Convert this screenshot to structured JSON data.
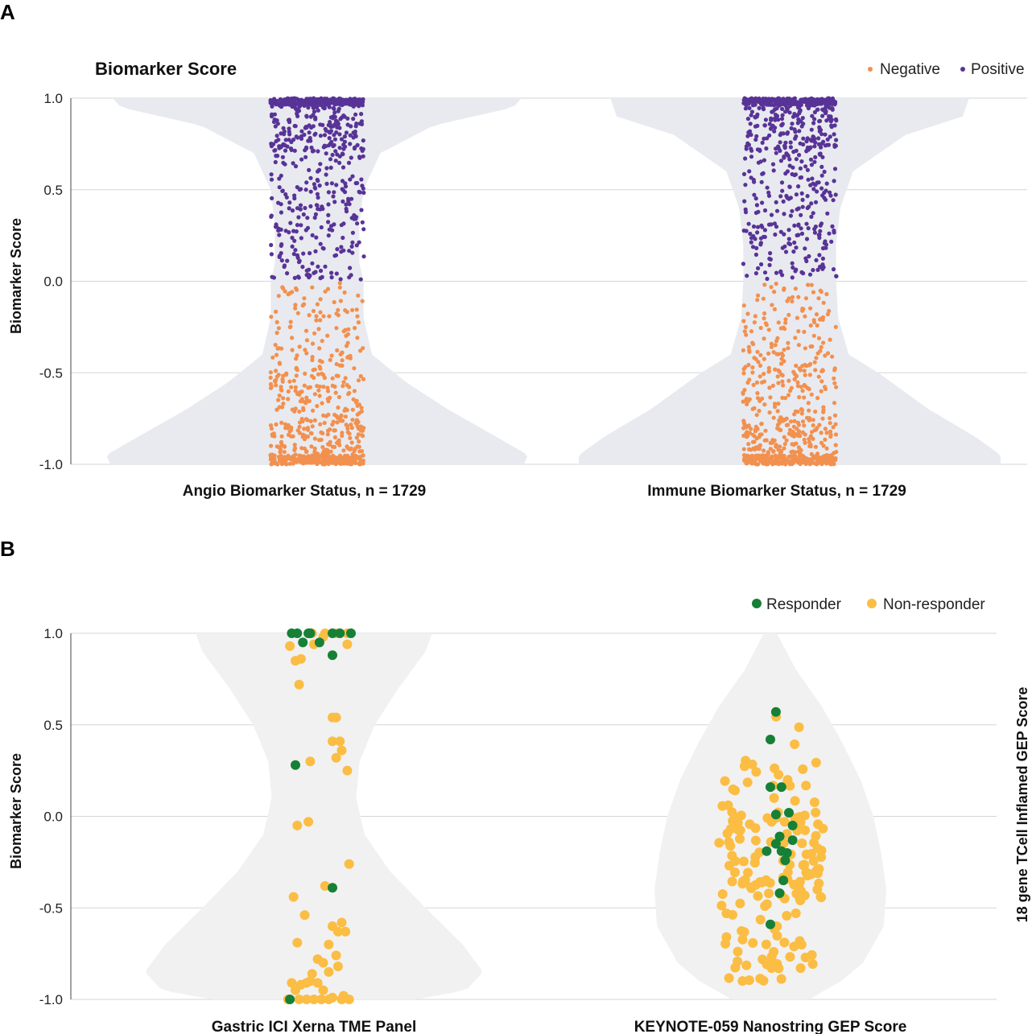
{
  "colors": {
    "negative": "#f2904f",
    "positive": "#583397",
    "responder": "#168036",
    "non_responder": "#fbbd43",
    "violin_a": "#e8eaef",
    "violin_b": "#f1f1f1",
    "grid": "#d6d6d6"
  },
  "panel_a": {
    "label": "A",
    "chart_data": {
      "type": "scatter",
      "title": "Biomarker Score",
      "ylabel": "Biomarker Score",
      "ylim": [
        -1.0,
        1.0
      ],
      "yticks": [
        "1.0",
        "0.5",
        "0.0",
        "-0.5",
        "-1.0"
      ],
      "legend": [
        {
          "name": "Negative",
          "color_key": "negative"
        },
        {
          "name": "Positive",
          "color_key": "positive"
        }
      ],
      "legend_position": "top-right",
      "categories": [
        "Angio Biomarker Status, n = 1729",
        "Immune Biomarker Status, n = 1729"
      ],
      "series": [
        {
          "category": "Angio Biomarker Status, n = 1729",
          "n": 1729,
          "positive_share": 0.55,
          "density_profile": [
            [
              1.0,
              0.97
            ],
            [
              0.95,
              0.93
            ],
            [
              0.85,
              0.55
            ],
            [
              0.7,
              0.3
            ],
            [
              0.5,
              0.22
            ],
            [
              0.3,
              0.2
            ],
            [
              0.1,
              0.2
            ],
            [
              0.0,
              0.22
            ],
            [
              -0.2,
              0.22
            ],
            [
              -0.4,
              0.26
            ],
            [
              -0.55,
              0.42
            ],
            [
              -0.7,
              0.62
            ],
            [
              -0.85,
              0.85
            ],
            [
              -0.95,
              1.0
            ],
            [
              -1.0,
              0.98
            ]
          ]
        },
        {
          "category": "Immune Biomarker Status, n = 1729",
          "n": 1729,
          "positive_share": 0.52,
          "density_profile": [
            [
              1.0,
              0.85
            ],
            [
              0.9,
              0.82
            ],
            [
              0.8,
              0.55
            ],
            [
              0.6,
              0.3
            ],
            [
              0.4,
              0.24
            ],
            [
              0.2,
              0.22
            ],
            [
              0.0,
              0.22
            ],
            [
              -0.2,
              0.23
            ],
            [
              -0.4,
              0.28
            ],
            [
              -0.5,
              0.42
            ],
            [
              -0.7,
              0.66
            ],
            [
              -0.85,
              0.88
            ],
            [
              -0.95,
              1.0
            ],
            [
              -1.0,
              1.0
            ]
          ]
        }
      ]
    }
  },
  "panel_b": {
    "label": "B",
    "chart_data": {
      "type": "scatter",
      "ylabel": "Biomarker Score",
      "y2label": "18 gene TCell Inflamed GEP Score",
      "ylim": [
        -1.0,
        1.0
      ],
      "yticks": [
        "1.0",
        "0.5",
        "0.0",
        "-0.5",
        "-1.0"
      ],
      "legend": [
        {
          "name": "Responder",
          "color_key": "responder"
        },
        {
          "name": "Non-responder",
          "color_key": "non_responder"
        }
      ],
      "legend_position": "top-right",
      "categories": [
        "Gastric ICI Xerna TME Panel",
        "KEYNOTE-059 Nanostring GEP Score"
      ],
      "series": [
        {
          "category": "Gastric ICI Xerna TME Panel",
          "density_profile": [
            [
              1.0,
              0.7
            ],
            [
              0.9,
              0.66
            ],
            [
              0.7,
              0.5
            ],
            [
              0.5,
              0.36
            ],
            [
              0.3,
              0.27
            ],
            [
              0.1,
              0.25
            ],
            [
              -0.1,
              0.3
            ],
            [
              -0.3,
              0.45
            ],
            [
              -0.5,
              0.66
            ],
            [
              -0.7,
              0.88
            ],
            [
              -0.85,
              1.0
            ],
            [
              -0.95,
              0.9
            ],
            [
              -1.0,
              0.6
            ]
          ],
          "responders": [
            [
              0.91,
              1.0
            ],
            [
              0.88,
              1.0
            ],
            [
              0.97,
              1.0
            ],
            [
              0.98,
              1.0
            ],
            [
              1.1,
              1.0
            ],
            [
              1.14,
              1.0
            ],
            [
              1.2,
              1.0
            ],
            [
              0.94,
              0.95
            ],
            [
              1.03,
              0.95
            ],
            [
              1.1,
              0.88
            ],
            [
              0.9,
              0.28
            ],
            [
              1.1,
              -0.39
            ],
            [
              0.87,
              -1.0
            ]
          ],
          "non_responders": [
            [
              0.99,
              1.0
            ],
            [
              1.06,
              1.0
            ],
            [
              1.12,
              1.0
            ],
            [
              1.18,
              1.0
            ],
            [
              1.05,
              0.98
            ],
            [
              0.87,
              0.93
            ],
            [
              1.0,
              0.94
            ],
            [
              1.18,
              0.94
            ],
            [
              0.9,
              0.85
            ],
            [
              0.93,
              0.86
            ],
            [
              0.92,
              0.72
            ],
            [
              1.1,
              0.54
            ],
            [
              1.12,
              0.54
            ],
            [
              1.1,
              0.41
            ],
            [
              1.14,
              0.41
            ],
            [
              1.12,
              0.32
            ],
            [
              0.98,
              0.3
            ],
            [
              1.15,
              0.36
            ],
            [
              1.18,
              0.25
            ],
            [
              0.91,
              -0.05
            ],
            [
              0.97,
              -0.03
            ],
            [
              1.19,
              -0.26
            ],
            [
              0.89,
              -0.44
            ],
            [
              1.06,
              -0.38
            ],
            [
              0.95,
              -0.54
            ],
            [
              1.15,
              -0.58
            ],
            [
              1.1,
              -0.6
            ],
            [
              1.13,
              -0.63
            ],
            [
              1.17,
              -0.63
            ],
            [
              1.08,
              -0.7
            ],
            [
              0.91,
              -0.69
            ],
            [
              1.12,
              -0.76
            ],
            [
              1.05,
              -0.8
            ],
            [
              1.08,
              -0.85
            ],
            [
              1.02,
              -0.78
            ],
            [
              1.13,
              -0.82
            ],
            [
              0.99,
              -0.86
            ],
            [
              1.02,
              -0.91
            ],
            [
              0.93,
              -0.92
            ],
            [
              0.96,
              -0.91
            ],
            [
              0.98,
              -0.9
            ],
            [
              0.9,
              -0.95
            ],
            [
              0.88,
              -0.91
            ],
            [
              1.05,
              -0.95
            ],
            [
              1.1,
              -0.99
            ],
            [
              1.16,
              -0.98
            ],
            [
              1.15,
              -1.0
            ],
            [
              1.19,
              -1.0
            ],
            [
              0.86,
              -1.0
            ],
            [
              0.92,
              -1.0
            ],
            [
              0.96,
              -1.0
            ],
            [
              1.0,
              -1.0
            ],
            [
              1.04,
              -1.0
            ],
            [
              1.08,
              -1.0
            ]
          ]
        },
        {
          "category": "KEYNOTE-059 Nanostring GEP Score",
          "density_profile": [
            [
              1.0,
              0.05
            ],
            [
              0.8,
              0.2
            ],
            [
              0.6,
              0.4
            ],
            [
              0.4,
              0.56
            ],
            [
              0.2,
              0.7
            ],
            [
              0.0,
              0.8
            ],
            [
              -0.2,
              0.86
            ],
            [
              -0.4,
              0.9
            ],
            [
              -0.6,
              0.88
            ],
            [
              -0.8,
              0.72
            ],
            [
              -0.9,
              0.55
            ],
            [
              -1.0,
              0.3
            ]
          ],
          "responders": [
            [
              2.03,
              0.57
            ],
            [
              2.0,
              0.42
            ],
            [
              2.06,
              0.16
            ],
            [
              2.0,
              0.16
            ],
            [
              2.1,
              0.02
            ],
            [
              2.03,
              0.01
            ],
            [
              2.12,
              -0.13
            ],
            [
              2.05,
              -0.11
            ],
            [
              2.06,
              -0.19
            ],
            [
              1.98,
              -0.19
            ],
            [
              2.08,
              -0.24
            ],
            [
              2.07,
              -0.35
            ],
            [
              2.05,
              -0.42
            ],
            [
              2.0,
              -0.59
            ],
            [
              2.09,
              -0.2
            ],
            [
              2.03,
              -0.15
            ],
            [
              2.12,
              -0.05
            ]
          ],
          "non_responders": "Generated jitter cloud of ~170 points centered near -0.15, range -0.9 to 0.57"
        }
      ]
    }
  }
}
